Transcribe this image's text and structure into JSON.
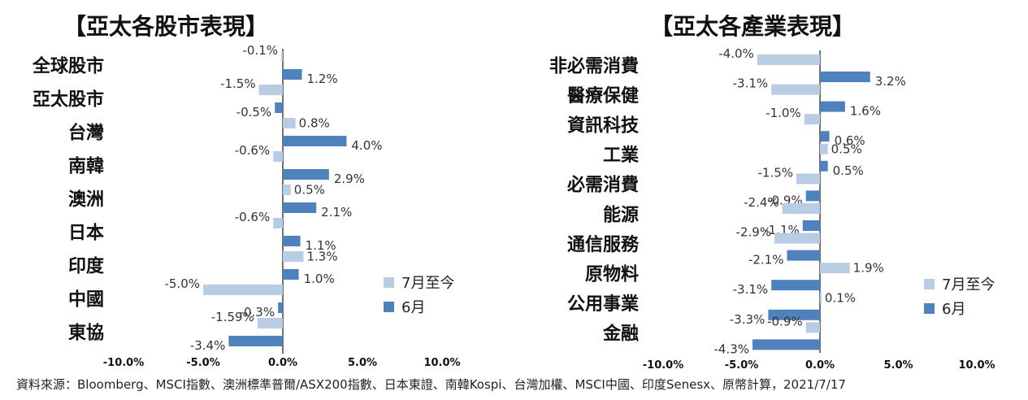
{
  "footer": "資料來源：Bloomberg、MSCI指數、澳洲標準普爾/ASX200指數、日本東證、南韓Kospi、台灣加權、MSCI中國、印度Senesx、原幣計算，2021/7/17",
  "colors": {
    "ytd": "#b8cce4",
    "june": "#4f81bd",
    "axis": "#444444"
  },
  "chart_data": [
    {
      "type": "bar",
      "orientation": "horizontal",
      "title": "【亞太各股市表現】",
      "categories": [
        "全球股市",
        "亞太股市",
        "台灣",
        "南韓",
        "澳洲",
        "日本",
        "印度",
        "中國",
        "東協"
      ],
      "series": [
        {
          "name": "7月至今",
          "values": [
            -0.1,
            -1.5,
            0.8,
            -0.6,
            0.5,
            -0.6,
            1.3,
            -5.0,
            -1.59
          ],
          "labels": [
            "-0.1%",
            "-1.5%",
            "0.8%",
            "-0.6%",
            "0.5%",
            "-0.6%",
            "1.3%",
            "-5.0%",
            "-1.59%"
          ]
        },
        {
          "name": "6月",
          "values": [
            1.2,
            -0.5,
            4.0,
            2.9,
            2.1,
            1.1,
            1.0,
            -0.3,
            -3.4
          ],
          "labels": [
            "1.2%",
            "-0.5%",
            "4.0%",
            "2.9%",
            "2.1%",
            "1.1%",
            "1.0%",
            "-0.3%",
            "-3.4%"
          ]
        }
      ],
      "xlim": [
        -10,
        10
      ],
      "xticks": [
        "-10.0%",
        "-5.0%",
        "0.0%",
        "5.0%",
        "10.0%"
      ],
      "legend": "right"
    },
    {
      "type": "bar",
      "orientation": "horizontal",
      "title": "【亞太各產業表現】",
      "categories": [
        "非必需消費",
        "醫療保健",
        "資訊科技",
        "工業",
        "必需消費",
        "能源",
        "通信服務",
        "原物料",
        "公用事業",
        "金融"
      ],
      "series": [
        {
          "name": "7月至今",
          "values": [
            -4.0,
            -3.1,
            -1.0,
            0.5,
            -1.5,
            -2.4,
            -2.9,
            1.9,
            0.1,
            -0.9
          ],
          "labels": [
            "-4.0%",
            "-3.1%",
            "-1.0%",
            "0.5%",
            "-1.5%",
            "-2.4%",
            "-2.9%",
            "1.9%",
            "0.1%",
            "-0.9%"
          ]
        },
        {
          "name": "6月",
          "values": [
            3.2,
            1.6,
            0.6,
            0.5,
            -0.9,
            -1.1,
            -2.1,
            -3.1,
            -3.3,
            -4.3
          ],
          "labels": [
            "3.2%",
            "1.6%",
            "0.6%",
            "0.5%",
            "-0.9%",
            "-1.1%",
            "-2.1%",
            "-3.1%",
            "-3.3%",
            "-4.3%"
          ]
        }
      ],
      "xlim": [
        -10,
        10
      ],
      "xticks": [
        "-10.0%",
        "-5.0%",
        "0.0%",
        "5.0%",
        "10.0%"
      ],
      "legend": "right"
    }
  ]
}
